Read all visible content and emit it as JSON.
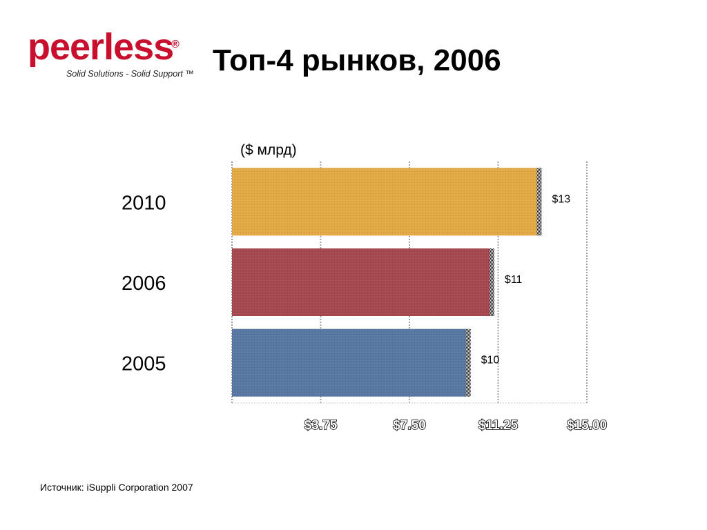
{
  "logo": {
    "wordmark": "peerless",
    "registered": "®",
    "tagline": "Solid Solutions - Solid Support ™",
    "color": "#c8102e"
  },
  "slide": {
    "title": "Топ-4 рынков, 2006",
    "source": "Источник: iSuppli Corporation 2007"
  },
  "chart_data": {
    "type": "bar",
    "orientation": "horizontal",
    "unit_label": "($ млрд)",
    "categories": [
      "2010",
      "2006",
      "2005"
    ],
    "values": [
      13,
      11,
      10
    ],
    "value_labels": [
      "$13",
      "$11",
      "$10"
    ],
    "bar_colors": [
      "#e2a945",
      "#a6484f",
      "#5877a3"
    ],
    "xlim": [
      0,
      15
    ],
    "x_ticks": [
      3.75,
      7.5,
      11.25,
      15
    ],
    "x_tick_labels": [
      "$3.75",
      "$7.50",
      "$11.25",
      "$15.00"
    ],
    "grid": true
  }
}
